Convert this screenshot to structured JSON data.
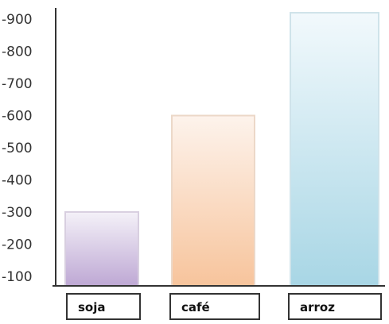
{
  "chart_data": {
    "type": "bar",
    "categories": [
      "soja",
      "café",
      "arroz"
    ],
    "values": [
      300,
      600,
      920
    ],
    "y_ticks": [
      "-100",
      "-200",
      "-300",
      "-400",
      "-500",
      "-600",
      "-700",
      "-800",
      "-900"
    ],
    "ylim": [
      70,
      930
    ],
    "grid": false,
    "bar_colors": [
      {
        "top": "#f4f1f8",
        "bottom": "#bea8d4",
        "border": "#d8cfe0"
      },
      {
        "top": "#fdf3ec",
        "bottom": "#f7c49c",
        "border": "#ecd8c8"
      },
      {
        "top": "#f2f9fc",
        "bottom": "#a8d6e5",
        "border": "#cfe3ea"
      }
    ],
    "axis_color": "#333333"
  }
}
